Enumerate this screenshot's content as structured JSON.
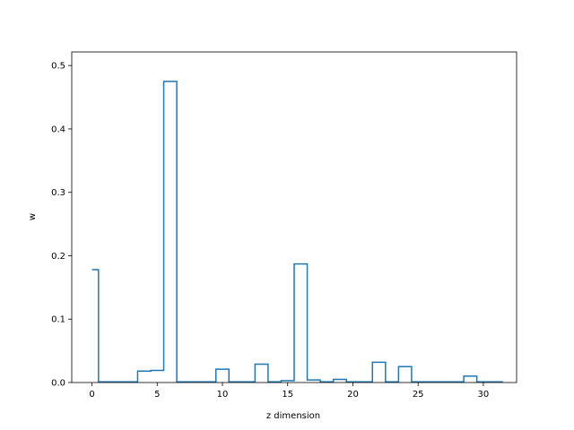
{
  "chart_data": {
    "type": "step",
    "title": "",
    "xlabel": "z dimension",
    "ylabel": "w",
    "xlim": [
      -1.55,
      32.55
    ],
    "ylim": [
      0,
      0.5214
    ],
    "xticks": [
      0,
      5,
      10,
      15,
      20,
      25,
      30
    ],
    "yticks": [
      0.0,
      0.1,
      0.2,
      0.3,
      0.4,
      0.5
    ],
    "ytick_labels": [
      "0.0",
      "0.1",
      "0.2",
      "0.3",
      "0.4",
      "0.5"
    ],
    "grid": false,
    "line_color": "#1f77b4",
    "x": [
      0,
      1,
      2,
      3,
      4,
      5,
      6,
      7,
      8,
      9,
      10,
      11,
      12,
      13,
      14,
      15,
      16,
      17,
      18,
      19,
      20,
      21,
      22,
      23,
      24,
      25,
      26,
      27,
      28,
      29,
      30,
      31
    ],
    "values": [
      0.178,
      0.001,
      0.001,
      0.001,
      0.018,
      0.019,
      0.475,
      0.001,
      0.001,
      0.001,
      0.021,
      0.001,
      0.001,
      0.029,
      0.001,
      0.003,
      0.187,
      0.004,
      0.001,
      0.005,
      0.001,
      0.001,
      0.032,
      0.001,
      0.025,
      0.001,
      0.001,
      0.001,
      0.001,
      0.01,
      0.001,
      0.001
    ]
  }
}
